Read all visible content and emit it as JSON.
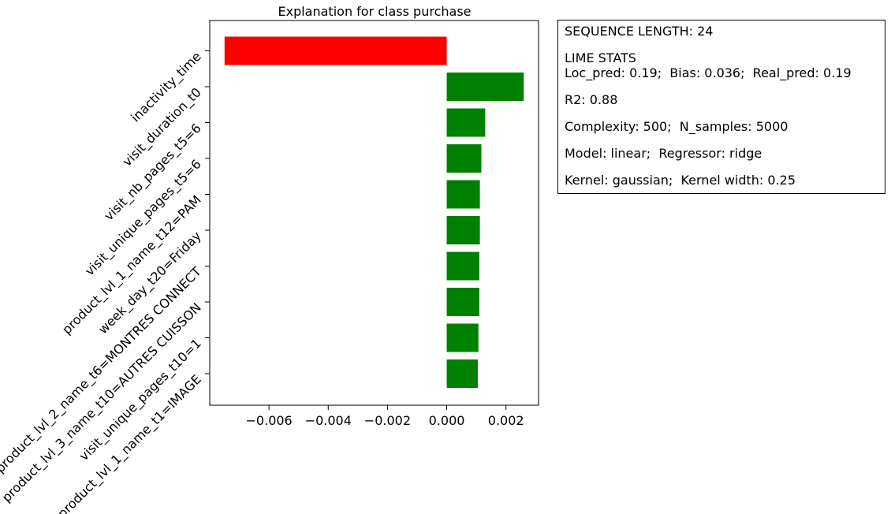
{
  "chart_data": {
    "type": "bar",
    "orientation": "horizontal",
    "title": "Explanation for class purchase",
    "xlabel": "",
    "ylabel": "",
    "categories": [
      "inactivity_time",
      "visit_duration_t0",
      "visit_nb_pages_t5=6",
      "visit_unique_pages_t5=6",
      "product_lvl_1_name_t12=PAM",
      "week_day_t20=Friday",
      "product_lvl_2_name_t6=MONTRES CONNECT",
      "product_lvl_3_name_t10=AUTRES CUISSON",
      "visit_unique_pages_t10=1",
      "product_lvl_1_name_t1=IMAGE"
    ],
    "values": [
      -0.0075,
      0.0026,
      0.0013,
      0.00117,
      0.00112,
      0.00112,
      0.0011,
      0.0011,
      0.00107,
      0.00105
    ],
    "xlim": [
      -0.008,
      0.0031
    ],
    "xticks": [
      -0.006,
      -0.004,
      -0.002,
      0.0,
      0.002
    ],
    "xtick_labels": [
      "−0.006",
      "−0.004",
      "−0.002",
      "0.000",
      "0.002"
    ],
    "colors": {
      "positive": "#008000",
      "negative": "#ff0000"
    },
    "grid": false
  },
  "stats": {
    "sequence_length": "SEQUENCE LENGTH: 24",
    "lime_stats_title": "LIME STATS",
    "preds": "Loc_pred: 0.19;  Bias: 0.036;  Real_pred: 0.19",
    "r2": "R2: 0.88",
    "complexity": "Complexity: 500;  N_samples: 5000",
    "model": "Model: linear;  Regressor: ridge",
    "kernel": "Kernel: gaussian;  Kernel width: 0.25"
  }
}
